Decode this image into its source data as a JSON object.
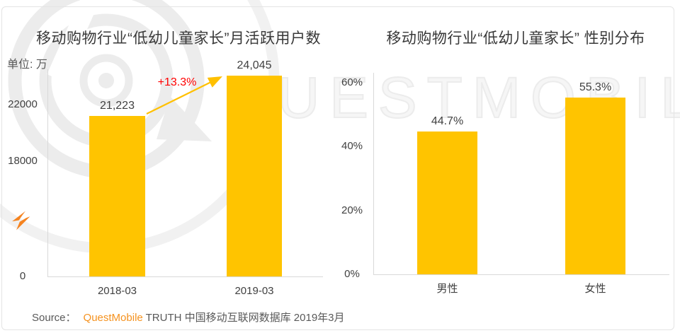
{
  "page": {
    "watermark_text": "UESTMOBILE",
    "footer": {
      "source_label": "Source：",
      "brand": "QuestMobile",
      "rest": " TRUTH 中国移动互联网数据库 2019年3月"
    },
    "colors": {
      "bar": "#FFC400",
      "arrow": "#FFC000",
      "growth_red": "#FF0000",
      "brand_orange": "#F5921F",
      "axis_line": "#D9D9D9",
      "text": "#404040",
      "muted_text": "#595959",
      "watermark": "#ECECEC"
    },
    "icons": [
      "questmobile-logo-watermark-icon",
      "lightning-icon",
      "growth-arrow-icon"
    ]
  },
  "chart_data": [
    {
      "type": "bar",
      "title": "移动购物行业“低幼儿童家长”月活跃用户数",
      "unit": "单位: 万",
      "categories": [
        "2018-03",
        "2019-03"
      ],
      "values": [
        21223,
        24045
      ],
      "value_labels": [
        "21,223",
        "24,045"
      ],
      "y_ticks": [
        {
          "value": 0,
          "label": "0"
        },
        {
          "value": 18000,
          "label": "18000"
        },
        {
          "value": 22000,
          "label": "22000"
        }
      ],
      "annotation": {
        "label": "+13.3%"
      },
      "grid": false,
      "legend": false
    },
    {
      "type": "bar",
      "title": "移动购物行业“低幼儿童家长” 性别分布",
      "categories": [
        "男性",
        "女性"
      ],
      "values": [
        44.7,
        55.3
      ],
      "value_labels": [
        "44.7%",
        "55.3%"
      ],
      "y_ticks": [
        {
          "value": 0,
          "label": "0%"
        },
        {
          "value": 20,
          "label": "20%"
        },
        {
          "value": 40,
          "label": "40%"
        },
        {
          "value": 60,
          "label": "60%"
        }
      ],
      "ylim": [
        0,
        63
      ],
      "grid": false,
      "legend": false
    }
  ]
}
